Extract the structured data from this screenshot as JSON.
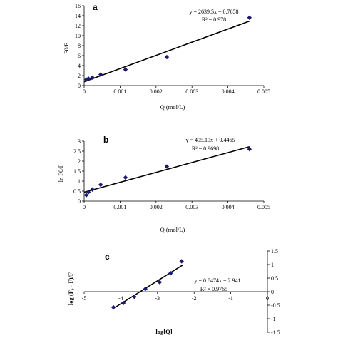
{
  "chart_data": [
    {
      "type": "scatter",
      "panel_label": "a",
      "xlabel": "Q (mol/L)",
      "ylabel": "F0/F",
      "xlim": [
        0,
        0.005
      ],
      "ylim": [
        0,
        16
      ],
      "xticks": [
        "0",
        "0.001",
        "0.002",
        "0.003",
        "0.004",
        "0.005"
      ],
      "yticks": [
        "0",
        "2",
        "4",
        "6",
        "8",
        "10",
        "12",
        "14",
        "16"
      ],
      "points": [
        {
          "x": 6e-05,
          "y": 1.2
        },
        {
          "x": 0.00012,
          "y": 1.4
        },
        {
          "x": 0.00023,
          "y": 1.6
        },
        {
          "x": 0.00046,
          "y": 2.2
        },
        {
          "x": 0.00115,
          "y": 3.2
        },
        {
          "x": 0.0023,
          "y": 5.7
        },
        {
          "x": 0.0046,
          "y": 13.6
        }
      ],
      "fit": {
        "slope": 2639.5,
        "intercept": 0.7658,
        "xrange": [
          0,
          0.0046
        ]
      },
      "equation": "y = 2639.5x + 0.7658",
      "r2_text": "R² = 0.978"
    },
    {
      "type": "scatter",
      "panel_label": "b",
      "xlabel": "Q (mol/L)",
      "ylabel": "ln F0/F",
      "xlim": [
        0,
        0.005
      ],
      "ylim": [
        0,
        3
      ],
      "xticks": [
        "0",
        "0.001",
        "0.002",
        "0.003",
        "0.004",
        "0.005"
      ],
      "yticks": [
        "0",
        "0.5",
        "1",
        "1.5",
        "2",
        "2.5",
        "3"
      ],
      "points": [
        {
          "x": 6e-05,
          "y": 0.3
        },
        {
          "x": 0.00012,
          "y": 0.45
        },
        {
          "x": 0.00023,
          "y": 0.58
        },
        {
          "x": 0.00046,
          "y": 0.82
        },
        {
          "x": 0.00115,
          "y": 1.18
        },
        {
          "x": 0.0023,
          "y": 1.73
        },
        {
          "x": 0.0046,
          "y": 2.6
        }
      ],
      "fit": {
        "slope": 495.19,
        "intercept": 0.4465,
        "xrange": [
          0,
          0.0046
        ]
      },
      "equation": "y = 495.19x + 0.4465",
      "r2_text": "R² = 0.9698"
    },
    {
      "type": "scatter",
      "panel_label": "c",
      "xlabel": "log[Q]",
      "ylabel": "log (F₀ - F)/F",
      "xlim": [
        -5,
        0
      ],
      "ylim": [
        -1.5,
        1.5
      ],
      "xticks": [
        "-5",
        "-4",
        "-3",
        "-2",
        "-1",
        "0"
      ],
      "yticks": [
        "1.5",
        "1",
        "0.5",
        "0",
        "-0.5",
        "-1",
        "-1.5"
      ],
      "points": [
        {
          "x": -4.2,
          "y": -0.58
        },
        {
          "x": -3.93,
          "y": -0.42
        },
        {
          "x": -3.63,
          "y": -0.19
        },
        {
          "x": -3.33,
          "y": 0.1
        },
        {
          "x": -2.94,
          "y": 0.35
        },
        {
          "x": -2.64,
          "y": 0.68
        },
        {
          "x": -2.34,
          "y": 1.12
        }
      ],
      "fit": {
        "slope": 0.8474,
        "intercept": 2.941,
        "xrange": [
          -4.15,
          -2.3
        ]
      },
      "equation": "y = 0.8474x + 2.941",
      "r2_text": "R² = 0.9765"
    }
  ]
}
